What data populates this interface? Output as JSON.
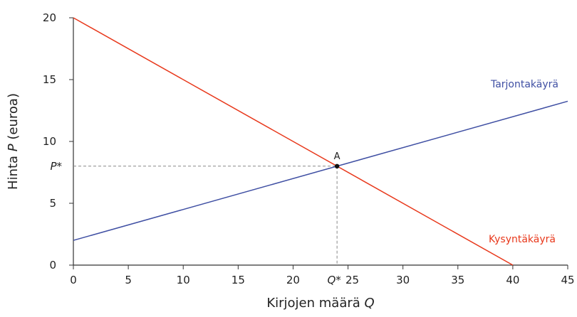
{
  "chart_data": {
    "type": "line",
    "title": "",
    "xlabel": "Kirjojen määrä Q",
    "ylabel": "Hinta P (euroa)",
    "xlim": [
      0,
      45
    ],
    "ylim": [
      0,
      20
    ],
    "x_ticks": [
      0,
      5,
      10,
      15,
      20,
      25,
      30,
      35,
      40,
      45
    ],
    "y_ticks": [
      0,
      5,
      10,
      15,
      20
    ],
    "grid": false,
    "series": [
      {
        "name": "Kysyntäkäyrä",
        "color": "#e8381b",
        "points": [
          [
            0,
            20
          ],
          [
            40,
            0
          ]
        ]
      },
      {
        "name": "Tarjontakäyrä",
        "color": "#3f4fa3",
        "points": [
          [
            0,
            2
          ],
          [
            45,
            13.25
          ]
        ]
      }
    ],
    "equilibrium": {
      "label": "A",
      "q": 24,
      "p": 8,
      "q_label": "Q*",
      "p_label": "P*"
    },
    "axis_color": "#333333",
    "guide_color": "#888888"
  }
}
